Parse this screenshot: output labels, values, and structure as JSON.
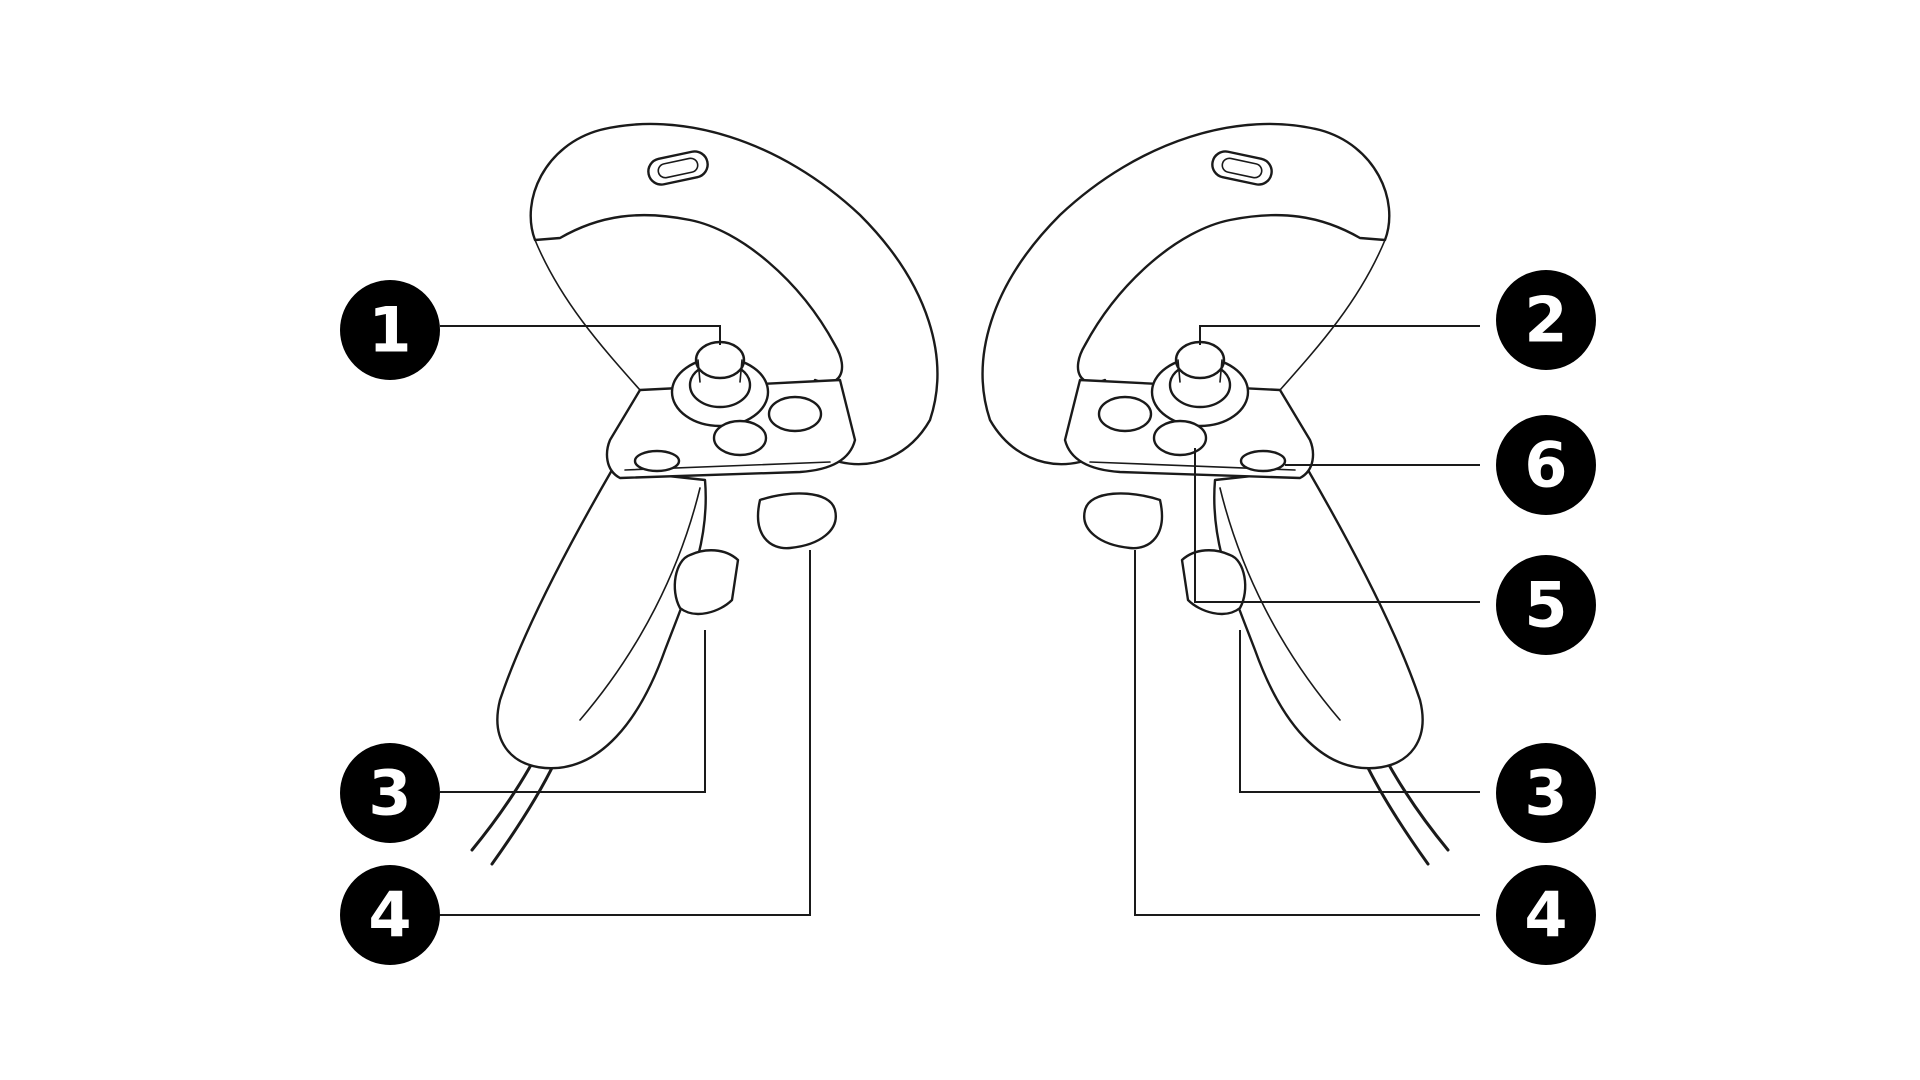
{
  "callouts": {
    "left_1": "1",
    "left_3": "3",
    "left_4": "4",
    "right_2": "2",
    "right_6": "6",
    "right_5": "5",
    "right_3": "3",
    "right_4": "4"
  }
}
